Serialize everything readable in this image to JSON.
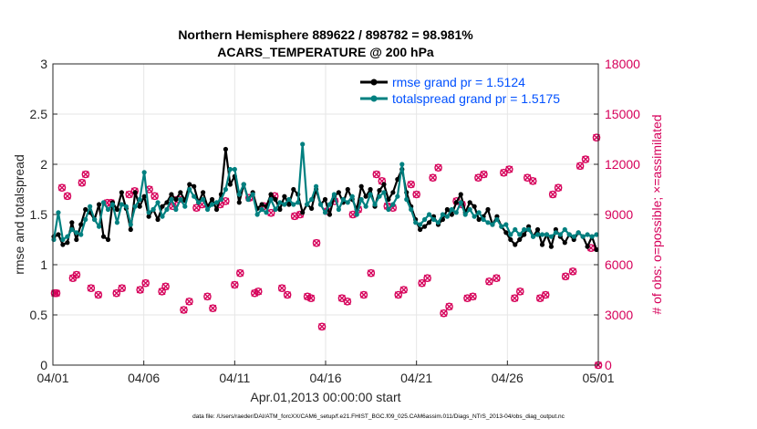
{
  "chart_data": {
    "type": "line",
    "title_line1": "Northern Hemisphere 889622 / 898782 = 98.981%",
    "title_line2": "ACARS_TEMPERATURE @ 200 hPa",
    "xlabel": "Apr.01,2013 00:00:00 start",
    "ylabel_left": "rmse and totalspread",
    "ylabel_right": "# of obs: o=possible; ×=assimilated",
    "xlim": [
      0,
      30
    ],
    "ylim_left": [
      0,
      3
    ],
    "ylim_right": [
      0,
      18000
    ],
    "x_ticks": [
      {
        "value": 0,
        "label": "04/01"
      },
      {
        "value": 5,
        "label": "04/06"
      },
      {
        "value": 10,
        "label": "04/11"
      },
      {
        "value": 15,
        "label": "04/16"
      },
      {
        "value": 20,
        "label": "04/21"
      },
      {
        "value": 25,
        "label": "04/26"
      },
      {
        "value": 30,
        "label": "05/01"
      }
    ],
    "y_ticks_left": [
      {
        "value": 0,
        "label": "0"
      },
      {
        "value": 0.5,
        "label": "0.5"
      },
      {
        "value": 1,
        "label": "1"
      },
      {
        "value": 1.5,
        "label": "1.5"
      },
      {
        "value": 2,
        "label": "2"
      },
      {
        "value": 2.5,
        "label": "2.5"
      },
      {
        "value": 3,
        "label": "3"
      }
    ],
    "y_ticks_right": [
      {
        "value": 0,
        "label": "0"
      },
      {
        "value": 3000,
        "label": "3000"
      },
      {
        "value": 6000,
        "label": "6000"
      },
      {
        "value": 9000,
        "label": "9000"
      },
      {
        "value": 12000,
        "label": "12000"
      },
      {
        "value": 15000,
        "label": "15000"
      },
      {
        "value": 18000,
        "label": "18000"
      }
    ],
    "legend": {
      "location": "top-right",
      "entries": [
        "rmse grand pr = 1.5124",
        "totalspread grand pr = 1.5175"
      ]
    },
    "colors": {
      "rmse": "#000000",
      "totalspread": "#008080",
      "obs": "#d6005a",
      "legend_text": "#0050ff",
      "grid": "#e6e6e6"
    },
    "series": [
      {
        "name": "rmse",
        "values": [
          1.28,
          1.3,
          1.2,
          1.22,
          1.42,
          1.25,
          1.4,
          1.55,
          1.52,
          1.45,
          1.6,
          1.28,
          1.25,
          1.62,
          1.55,
          1.72,
          1.56,
          1.35,
          1.72,
          1.58,
          1.68,
          1.48,
          1.55,
          1.45,
          1.58,
          1.62,
          1.7,
          1.65,
          1.72,
          1.64,
          1.8,
          1.78,
          1.62,
          1.72,
          1.58,
          1.65,
          1.55,
          1.7,
          2.15,
          1.8,
          1.88,
          1.62,
          1.8,
          1.65,
          1.72,
          1.56,
          1.6,
          1.58,
          1.7,
          1.65,
          1.55,
          1.68,
          1.6,
          1.75,
          1.7,
          1.52,
          1.6,
          1.56,
          1.75,
          1.6,
          1.65,
          1.5,
          1.68,
          1.72,
          1.62,
          1.75,
          1.65,
          1.55,
          1.78,
          1.68,
          1.75,
          1.58,
          1.74,
          1.8,
          1.65,
          1.72,
          1.85,
          1.95,
          1.72,
          1.58,
          1.45,
          1.35,
          1.38,
          1.42,
          1.48,
          1.4,
          1.45,
          1.55,
          1.5,
          1.62,
          1.7,
          1.52,
          1.62,
          1.58,
          1.45,
          1.48,
          1.55,
          1.4,
          1.48,
          1.38,
          1.32,
          1.25,
          1.2,
          1.25,
          1.3,
          1.38,
          1.28,
          1.35,
          1.2,
          1.3,
          1.18,
          1.35,
          1.28,
          1.22,
          1.3,
          1.25,
          1.32,
          1.28,
          1.18,
          1.28,
          1.15
        ],
        "marker": "dot"
      },
      {
        "name": "totalspread",
        "values": [
          1.25,
          1.52,
          1.25,
          1.28,
          1.35,
          1.32,
          1.3,
          1.45,
          1.58,
          1.45,
          1.38,
          1.62,
          1.55,
          1.6,
          1.42,
          1.6,
          1.58,
          1.4,
          1.58,
          1.65,
          1.92,
          1.52,
          1.55,
          1.62,
          1.48,
          1.55,
          1.65,
          1.55,
          1.65,
          1.58,
          1.75,
          1.68,
          1.62,
          1.65,
          1.55,
          1.6,
          1.62,
          1.65,
          1.75,
          1.95,
          1.95,
          1.7,
          1.8,
          1.65,
          1.7,
          1.5,
          1.55,
          1.52,
          1.65,
          1.55,
          1.62,
          1.6,
          1.65,
          1.6,
          1.62,
          2.2,
          1.6,
          1.65,
          1.78,
          1.6,
          1.52,
          1.6,
          1.7,
          1.55,
          1.65,
          1.62,
          1.68,
          1.5,
          1.65,
          1.58,
          1.7,
          1.6,
          1.68,
          1.72,
          1.55,
          1.6,
          1.68,
          2.0,
          1.65,
          1.55,
          1.42,
          1.4,
          1.45,
          1.5,
          1.45,
          1.42,
          1.5,
          1.48,
          1.55,
          1.52,
          1.62,
          1.5,
          1.55,
          1.48,
          1.52,
          1.45,
          1.42,
          1.4,
          1.45,
          1.38,
          1.4,
          1.3,
          1.35,
          1.3,
          1.35,
          1.35,
          1.28,
          1.3,
          1.3,
          1.3,
          1.28,
          1.32,
          1.3,
          1.35,
          1.3,
          1.28,
          1.32,
          1.28,
          1.3,
          1.28,
          1.3
        ],
        "marker": "dot"
      }
    ],
    "obs_counts": [
      [
        0.1,
        4300
      ],
      [
        0.2,
        4300
      ],
      [
        0.5,
        10600
      ],
      [
        0.8,
        10100
      ],
      [
        1.1,
        5200
      ],
      [
        1.3,
        5400
      ],
      [
        1.6,
        10900
      ],
      [
        1.8,
        11400
      ],
      [
        2.1,
        4600
      ],
      [
        2.5,
        4200
      ],
      [
        3.0,
        9700
      ],
      [
        3.2,
        9700
      ],
      [
        3.5,
        4300
      ],
      [
        3.8,
        4600
      ],
      [
        4.2,
        10200
      ],
      [
        4.5,
        10400
      ],
      [
        4.8,
        4500
      ],
      [
        5.1,
        4900
      ],
      [
        5.3,
        10500
      ],
      [
        5.6,
        10100
      ],
      [
        6.0,
        4400
      ],
      [
        6.2,
        4700
      ],
      [
        6.6,
        9500
      ],
      [
        6.9,
        9900
      ],
      [
        7.2,
        3300
      ],
      [
        7.5,
        3800
      ],
      [
        7.9,
        9400
      ],
      [
        8.2,
        9600
      ],
      [
        8.5,
        4100
      ],
      [
        8.8,
        3400
      ],
      [
        9.2,
        9600
      ],
      [
        9.5,
        9800
      ],
      [
        10.0,
        4800
      ],
      [
        10.3,
        5500
      ],
      [
        10.8,
        10000
      ],
      [
        11.1,
        4300
      ],
      [
        11.3,
        4400
      ],
      [
        11.6,
        9500
      ],
      [
        12.0,
        9100
      ],
      [
        12.2,
        10100
      ],
      [
        12.6,
        4600
      ],
      [
        12.9,
        4200
      ],
      [
        13.3,
        8900
      ],
      [
        13.6,
        9000
      ],
      [
        14.0,
        4100
      ],
      [
        14.2,
        4000
      ],
      [
        14.5,
        7300
      ],
      [
        14.8,
        2300
      ],
      [
        15.1,
        9200
      ],
      [
        15.5,
        9800
      ],
      [
        15.9,
        4000
      ],
      [
        16.2,
        3800
      ],
      [
        16.5,
        9000
      ],
      [
        16.8,
        9300
      ],
      [
        17.1,
        4200
      ],
      [
        17.5,
        5500
      ],
      [
        17.8,
        11400
      ],
      [
        18.1,
        11000
      ],
      [
        18.4,
        9500
      ],
      [
        18.7,
        9400
      ],
      [
        19.0,
        4200
      ],
      [
        19.3,
        4500
      ],
      [
        19.7,
        10800
      ],
      [
        20.0,
        10200
      ],
      [
        20.3,
        4900
      ],
      [
        20.6,
        5200
      ],
      [
        20.9,
        11200
      ],
      [
        21.2,
        11800
      ],
      [
        21.5,
        3100
      ],
      [
        21.8,
        3500
      ],
      [
        22.2,
        9800
      ],
      [
        22.5,
        9600
      ],
      [
        22.8,
        4000
      ],
      [
        23.1,
        4100
      ],
      [
        23.4,
        11200
      ],
      [
        23.7,
        11400
      ],
      [
        24.0,
        5000
      ],
      [
        24.4,
        5200
      ],
      [
        24.8,
        11500
      ],
      [
        25.1,
        11700
      ],
      [
        25.4,
        4000
      ],
      [
        25.7,
        4400
      ],
      [
        26.1,
        11200
      ],
      [
        26.4,
        11000
      ],
      [
        26.8,
        4000
      ],
      [
        27.1,
        4200
      ],
      [
        27.5,
        10200
      ],
      [
        27.8,
        10600
      ],
      [
        28.2,
        5300
      ],
      [
        28.6,
        5600
      ],
      [
        29.0,
        11900
      ],
      [
        29.3,
        12300
      ],
      [
        29.6,
        7000
      ],
      [
        29.9,
        13600
      ],
      [
        30.0,
        0
      ]
    ],
    "footnote": "data file: /Users/raeder/DAI/ATM_forcXX/CAM6_setup/f.e21.FHIST_BGC.f09_025.CAM6assim.011/Diags_NTrS_2013-04/obs_diag_output.nc"
  }
}
